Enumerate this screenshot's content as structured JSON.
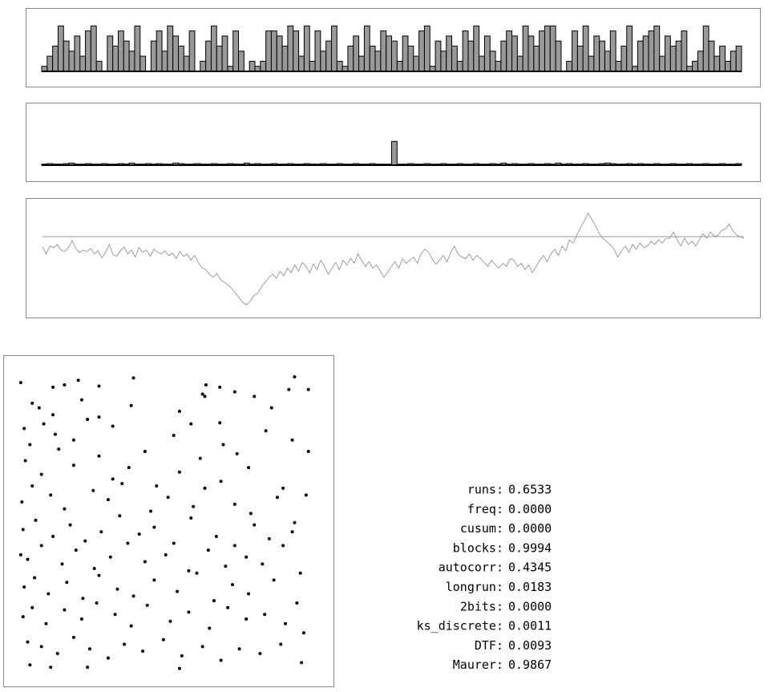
{
  "chart_data": [
    {
      "type": "bar",
      "color": "#999999",
      "ylim": [
        0,
        10
      ],
      "values": [
        1,
        3,
        5,
        9,
        6,
        4,
        7,
        3,
        8,
        9,
        2,
        0,
        7,
        5,
        8,
        6,
        4,
        9,
        3,
        0,
        6,
        8,
        4,
        9,
        7,
        5,
        3,
        8,
        0,
        2,
        6,
        9,
        5,
        7,
        1,
        8,
        4,
        0,
        2,
        1,
        2,
        8,
        8,
        7,
        5,
        9,
        8,
        3,
        9,
        2,
        8,
        4,
        6,
        9,
        2,
        1,
        5,
        7,
        3,
        9,
        5,
        4,
        8,
        7,
        6,
        2,
        7,
        5,
        3,
        8,
        9,
        1,
        6,
        4,
        7,
        5,
        2,
        8,
        6,
        9,
        3,
        7,
        4,
        2,
        6,
        8,
        7,
        3,
        9,
        7,
        5,
        8,
        9,
        9,
        6,
        0,
        2,
        8,
        5,
        9,
        3,
        7,
        6,
        4,
        8,
        2,
        5,
        9,
        1,
        6,
        7,
        8,
        9,
        3,
        7,
        5,
        6,
        8,
        1,
        2,
        4,
        9,
        6,
        3,
        5,
        2,
        4,
        5
      ]
    },
    {
      "type": "bar",
      "color": "#999999",
      "ylim": [
        0,
        10
      ],
      "values": [
        0.2,
        0.3,
        0.2,
        0.2,
        0.3,
        0.4,
        0.2,
        0.2,
        0.3,
        0.2,
        0.2,
        0.3,
        0.2,
        0.2,
        0.3,
        0.2,
        0.4,
        0.2,
        0.2,
        0.3,
        0.2,
        0.3,
        0.2,
        0.2,
        0.4,
        0.3,
        0.2,
        0.2,
        0.3,
        0.2,
        0.2,
        0.3,
        0.2,
        0.2,
        0.3,
        0.2,
        0.2,
        0.4,
        0.2,
        0.3,
        0.2,
        0.2,
        0.3,
        0.2,
        0.2,
        0.3,
        0.2,
        0.2,
        0.3,
        0.2,
        0.2,
        0.3,
        0.2,
        0.2,
        0.3,
        0.2,
        0.2,
        0.3,
        0.2,
        0.2,
        0.3,
        0.2,
        0.2,
        0.2,
        4.5,
        0.2,
        0.2,
        0.3,
        0.2,
        0.2,
        0.3,
        0.2,
        0.2,
        0.3,
        0.2,
        0.2,
        0.3,
        0.2,
        0.2,
        0.3,
        0.2,
        0.2,
        0.3,
        0.2,
        0.4,
        0.2,
        0.3,
        0.2,
        0.2,
        0.3,
        0.2,
        0.2,
        0.3,
        0.2,
        0.4,
        0.2,
        0.3,
        0.2,
        0.2,
        0.3,
        0.2,
        0.2,
        0.3,
        0.4,
        0.3,
        0.2,
        0.2,
        0.3,
        0.2,
        0.3,
        0.2,
        0.2,
        0.3,
        0.2,
        0.2,
        0.3,
        0.2,
        0.2,
        0.3,
        0.2,
        0.2,
        0.3,
        0.2,
        0.2,
        0.3,
        0.2,
        0.2,
        0.3
      ]
    },
    {
      "type": "line",
      "color": "#888888",
      "ylim": [
        -100,
        40
      ],
      "reference_line": 0,
      "reference_color": "#999999",
      "values": [
        -13,
        -22,
        -12,
        -14,
        -10,
        -17,
        -19,
        -14,
        -5,
        -16,
        -20,
        -17,
        -19,
        -15,
        -22,
        -18,
        -27,
        -20,
        -10,
        -23,
        -25,
        -18,
        -13,
        -22,
        -17,
        -26,
        -14,
        -20,
        -17,
        -25,
        -16,
        -20,
        -22,
        -18,
        -24,
        -21,
        -28,
        -19,
        -25,
        -22,
        -30,
        -24,
        -33,
        -40,
        -42,
        -48,
        -52,
        -47,
        -55,
        -58,
        -62,
        -66,
        -72,
        -78,
        -84,
        -87,
        -82,
        -75,
        -72,
        -64,
        -58,
        -52,
        -48,
        -53,
        -44,
        -50,
        -40,
        -46,
        -36,
        -44,
        -33,
        -38,
        -46,
        -35,
        -42,
        -30,
        -38,
        -48,
        -40,
        -33,
        -42,
        -30,
        -36,
        -28,
        -34,
        -22,
        -30,
        -38,
        -32,
        -40,
        -36,
        -44,
        -52,
        -45,
        -38,
        -32,
        -40,
        -28,
        -34,
        -30,
        -26,
        -34,
        -22,
        -16,
        -20,
        -28,
        -35,
        -30,
        -24,
        -32,
        -20,
        -12,
        -22,
        -26,
        -28,
        -22,
        -30,
        -24,
        -28,
        -33,
        -38,
        -30,
        -36,
        -40,
        -34,
        -38,
        -28,
        -30,
        -38,
        -34,
        -42,
        -36,
        -46,
        -38,
        -30,
        -24,
        -32,
        -22,
        -16,
        -24,
        -12,
        -18,
        -4,
        -8,
        2,
        12,
        20,
        30,
        22,
        14,
        4,
        -2,
        -6,
        -10,
        -16,
        -26,
        -18,
        -12,
        -20,
        -10,
        -16,
        -8,
        -14,
        -12,
        -6,
        -10,
        -4,
        -8,
        -2,
        -2,
        6,
        -4,
        -12,
        -2,
        -10,
        -6,
        -12,
        -4,
        4,
        -2,
        6,
        0,
        2,
        8,
        10,
        16,
        8,
        2,
        0,
        -2
      ]
    },
    {
      "type": "scatter",
      "color": "#000000",
      "xlim": [
        0,
        255
      ],
      "ylim": [
        0,
        255
      ],
      "x": [
        2,
        30,
        40,
        52,
        70,
        100,
        163,
        162,
        175,
        240,
        252,
        12,
        18,
        30,
        55,
        70,
        98,
        140,
        160,
        175,
        188,
        205,
        220,
        235,
        5,
        10,
        22,
        32,
        48,
        60,
        82,
        110,
        135,
        150,
        178,
        190,
        215,
        238,
        6,
        20,
        35,
        48,
        70,
        82,
        96,
        120,
        140,
        158,
        176,
        200,
        230,
        252,
        3,
        12,
        28,
        40,
        65,
        78,
        90,
        115,
        130,
        152,
        162,
        188,
        202,
        225,
        240,
        250,
        4,
        15,
        30,
        45,
        58,
        72,
        88,
        105,
        118,
        135,
        150,
        172,
        188,
        205,
        218,
        238,
        2,
        8,
        20,
        38,
        50,
        66,
        80,
        95,
        110,
        128,
        148,
        165,
        180,
        198,
        212,
        230,
        245,
        5,
        14,
        26,
        42,
        56,
        70,
        86,
        100,
        118,
        138,
        155,
        170,
        186,
        200,
        222,
        242,
        4,
        12,
        24,
        40,
        55,
        68,
        84,
        98,
        112,
        132,
        148,
        166,
        182,
        198,
        214,
        232,
        248,
        8,
        20,
        34,
        48,
        62,
        78,
        92,
        108,
        126,
        142,
        160,
        176,
        192,
        210,
        228,
        246,
        10,
        28,
        60,
        140
      ],
      "y": [
        250,
        246,
        248,
        252,
        247,
        254,
        248,
        238,
        246,
        255,
        244,
        232,
        228,
        222,
        235,
        220,
        230,
        225,
        240,
        215,
        242,
        238,
        228,
        244,
        210,
        196,
        214,
        205,
        200,
        218,
        212,
        190,
        204,
        214,
        196,
        188,
        208,
        200,
        182,
        170,
        192,
        178,
        186,
        166,
        176,
        160,
        172,
        184,
        164,
        176,
        158,
        190,
        146,
        160,
        152,
        140,
        156,
        148,
        162,
        138,
        150,
        142,
        158,
        144,
        136,
        150,
        128,
        152,
        122,
        130,
        116,
        126,
        112,
        120,
        134,
        118,
        124,
        110,
        132,
        116,
        108,
        126,
        114,
        120,
        100,
        96,
        108,
        92,
        104,
        88,
        98,
        110,
        94,
        100,
        86,
        104,
        90,
        98,
        92,
        108,
        84,
        72,
        80,
        66,
        76,
        62,
        82,
        70,
        64,
        78,
        68,
        84,
        60,
        74,
        66,
        78,
        58,
        46,
        54,
        40,
        52,
        44,
        58,
        48,
        38,
        56,
        42,
        50,
        36,
        54,
        44,
        48,
        40,
        32,
        24,
        20,
        14,
        28,
        18,
        10,
        22,
        16,
        26,
        12,
        20,
        8,
        18,
        14,
        22,
        6,
        4,
        2,
        2,
        1
      ]
    }
  ],
  "stats": [
    {
      "label": "runs:",
      "value": "0.6533"
    },
    {
      "label": "freq:",
      "value": "0.0000"
    },
    {
      "label": "cusum:",
      "value": "0.0000"
    },
    {
      "label": "blocks:",
      "value": "0.9994"
    },
    {
      "label": "autocorr:",
      "value": "0.4345"
    },
    {
      "label": "longrun:",
      "value": "0.0183"
    },
    {
      "label": "2bits:",
      "value": "0.0000"
    },
    {
      "label": "ks_discrete:",
      "value": "0.0011"
    },
    {
      "label": "DTF:",
      "value": "0.0093"
    },
    {
      "label": "Maurer:",
      "value": "0.9867"
    }
  ]
}
